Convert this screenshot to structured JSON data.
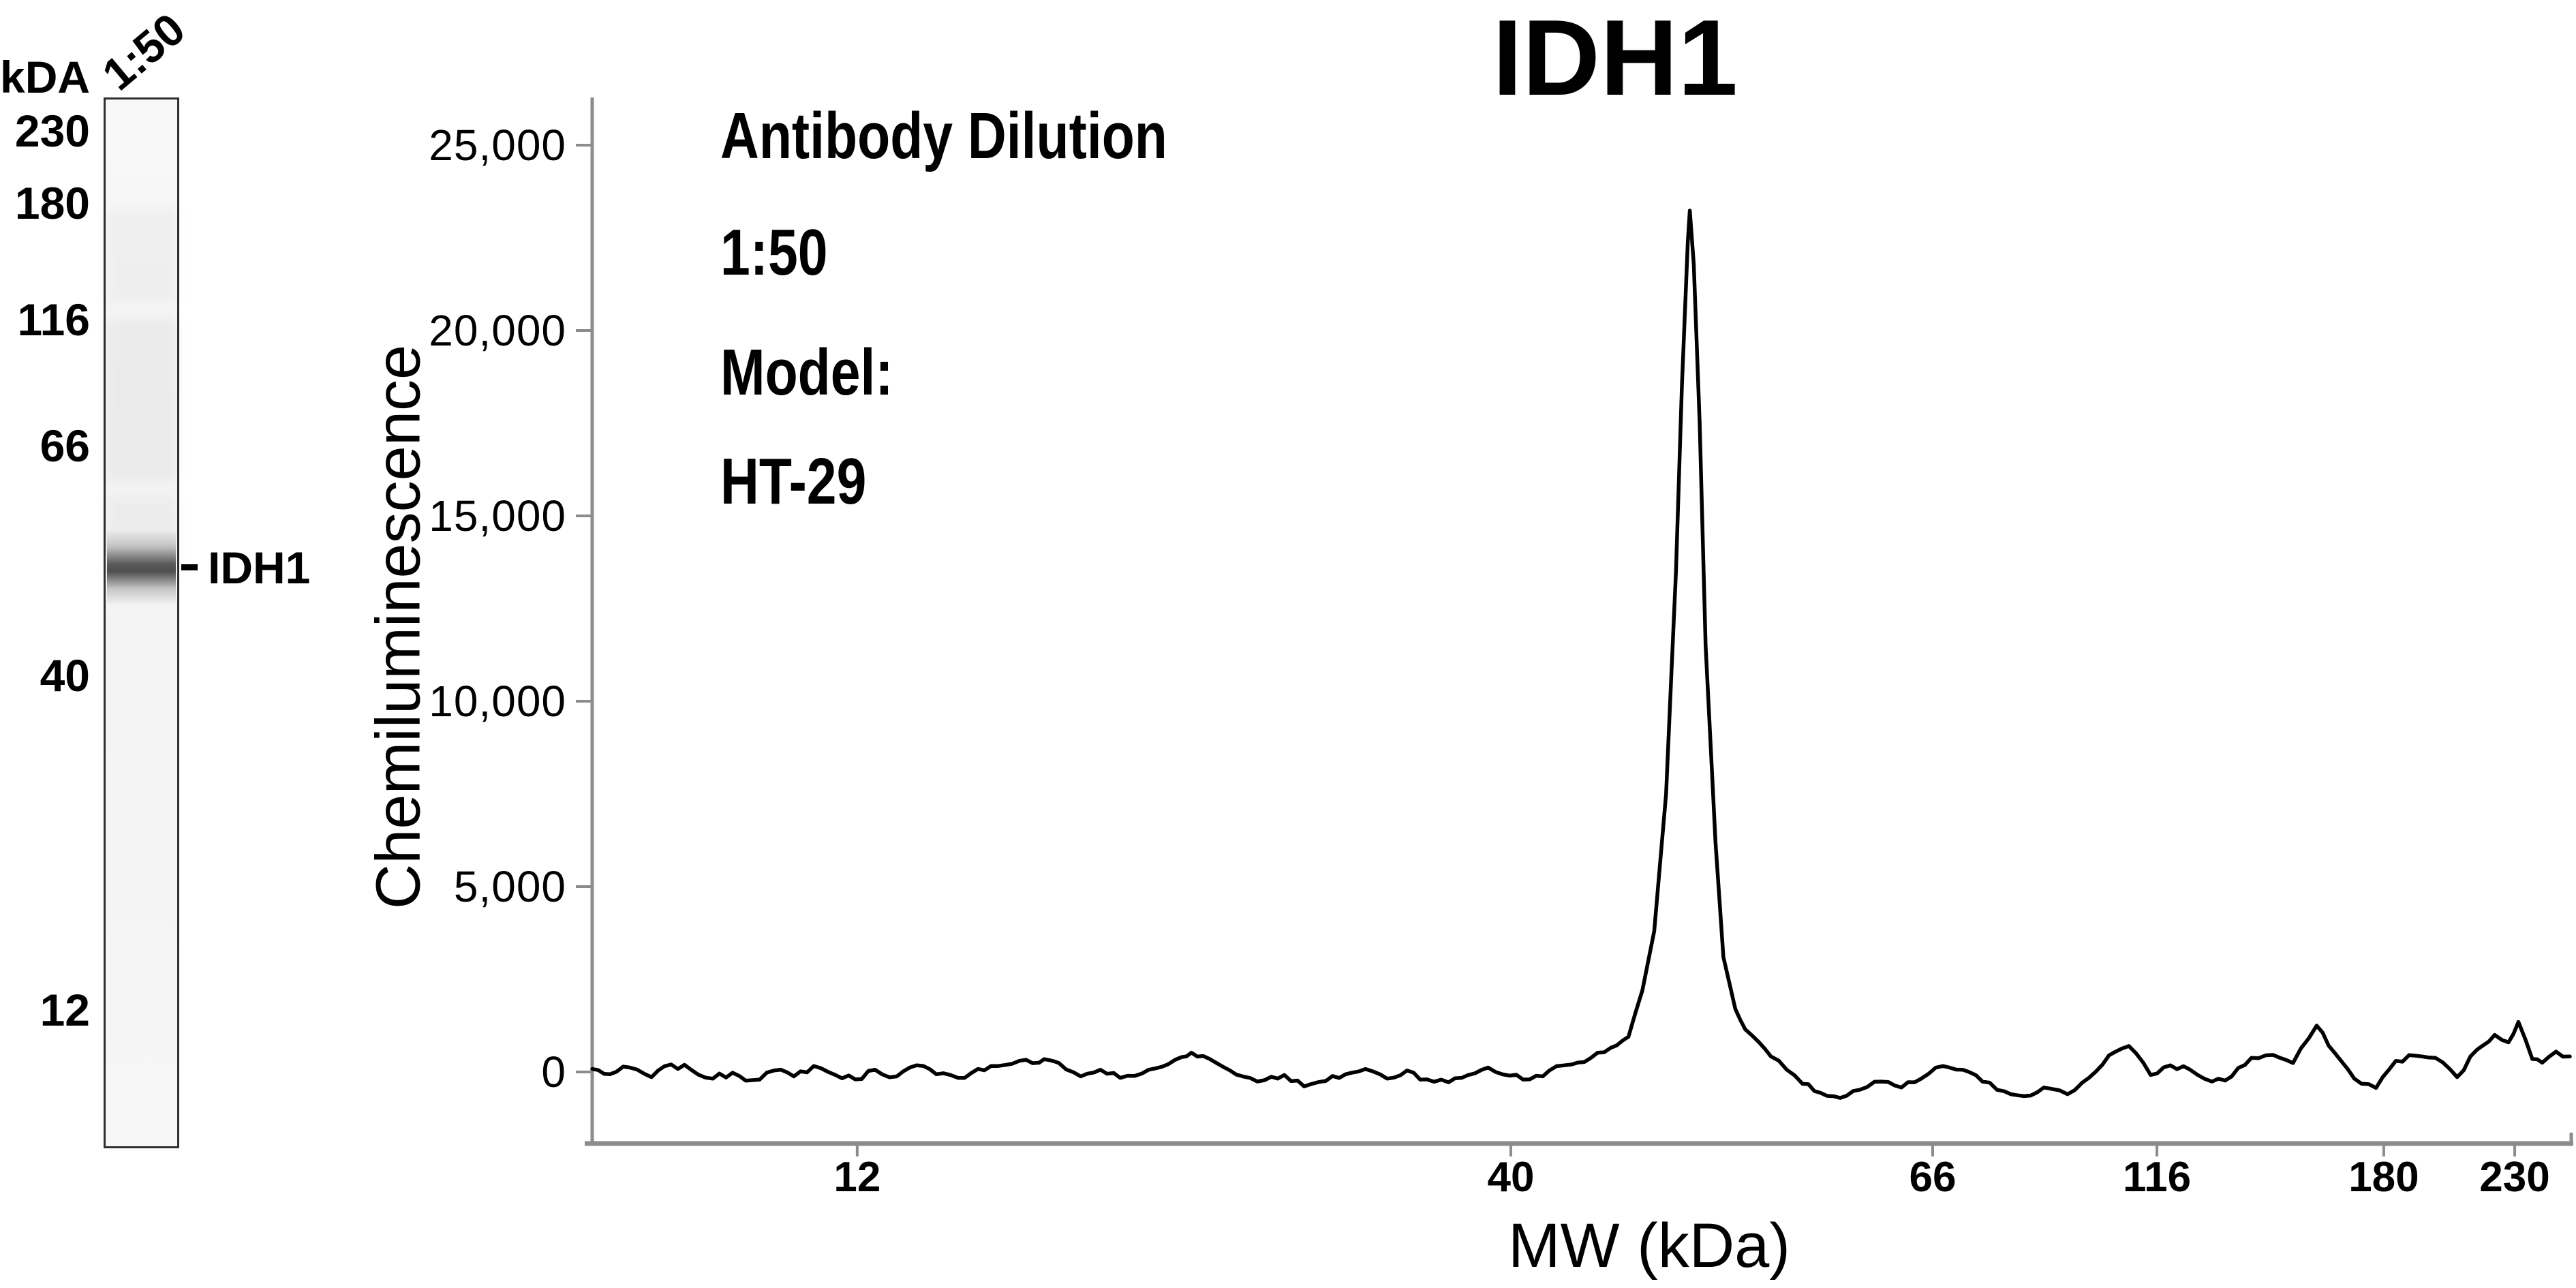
{
  "title": "IDH1",
  "colors": {
    "trace": "#000000",
    "axis": "#8c8c8c",
    "band": "#4d4d4d",
    "lane_fill": "#f4f4f4",
    "text": "#000000"
  },
  "lane": {
    "header": "kDA",
    "dilution": "1:50",
    "markers": [
      "230",
      "180",
      "116",
      "66",
      "40",
      "12"
    ],
    "band_label": "IDH1"
  },
  "annotation": {
    "dilution_title": "Antibody Dilution",
    "dilution_value": "1:50",
    "model_title": "Model:",
    "model_value": "HT-29"
  },
  "chart_data": {
    "type": "line",
    "title": "IDH1",
    "xlabel": "MW (kDa)",
    "ylabel": "Chemiluminescence",
    "legend": false,
    "gridlines": false,
    "x_axis": {
      "scale": "nonlinear molecular-weight axis",
      "tick_mws": [
        12,
        40,
        66,
        116,
        180,
        230
      ],
      "tick_labels": [
        "12",
        "40",
        "66",
        "116",
        "180",
        "230"
      ],
      "tick_positions": [
        0.134,
        0.4645,
        0.6778,
        0.7912,
        0.9059,
        0.9721
      ]
    },
    "y_axis": {
      "tick_values": [
        25000,
        20000,
        15000,
        10000,
        5000,
        0
      ],
      "tick_labels": [
        "25,000",
        "20,000",
        "15,000",
        "10,000",
        "5,000",
        "0"
      ],
      "range_units": [
        -1800,
        26300
      ]
    },
    "peak": {
      "mw_kda": 48,
      "height_units": 23235,
      "position": 0.555
    },
    "noise": {
      "seed": 7,
      "amplitude_units": 90,
      "step": 0.0042
    },
    "series": [
      [
        0.0,
        80
      ],
      [
        0.009,
        -60
      ],
      [
        0.019,
        120
      ],
      [
        0.03,
        -140
      ],
      [
        0.04,
        200
      ],
      [
        0.05,
        60
      ],
      [
        0.061,
        -180
      ],
      [
        0.071,
        -20
      ],
      [
        0.081,
        -220
      ],
      [
        0.092,
        40
      ],
      [
        0.102,
        -120
      ],
      [
        0.112,
        160
      ],
      [
        0.123,
        -80
      ],
      [
        0.133,
        -200
      ],
      [
        0.143,
        60
      ],
      [
        0.154,
        -120
      ],
      [
        0.164,
        180
      ],
      [
        0.174,
        -60
      ],
      [
        0.185,
        -160
      ],
      [
        0.195,
        80
      ],
      [
        0.205,
        160
      ],
      [
        0.216,
        300
      ],
      [
        0.226,
        250
      ],
      [
        0.231,
        320
      ],
      [
        0.236,
        240
      ],
      [
        0.247,
        -120
      ],
      [
        0.257,
        60
      ],
      [
        0.267,
        -160
      ],
      [
        0.278,
        -40
      ],
      [
        0.288,
        140
      ],
      [
        0.298,
        400
      ],
      [
        0.303,
        520
      ],
      [
        0.309,
        430
      ],
      [
        0.319,
        140
      ],
      [
        0.329,
        -120
      ],
      [
        0.34,
        -220
      ],
      [
        0.35,
        -80
      ],
      [
        0.36,
        -390
      ],
      [
        0.371,
        -240
      ],
      [
        0.381,
        -60
      ],
      [
        0.391,
        80
      ],
      [
        0.402,
        -180
      ],
      [
        0.412,
        40
      ],
      [
        0.422,
        -200
      ],
      [
        0.433,
        -280
      ],
      [
        0.443,
        -80
      ],
      [
        0.453,
        120
      ],
      [
        0.464,
        -100
      ],
      [
        0.474,
        -200
      ],
      [
        0.484,
        40
      ],
      [
        0.495,
        200
      ],
      [
        0.505,
        380
      ],
      [
        0.515,
        650
      ],
      [
        0.524,
        950
      ],
      [
        0.531,
        2200
      ],
      [
        0.537,
        3800
      ],
      [
        0.543,
        7500
      ],
      [
        0.548,
        13500
      ],
      [
        0.551,
        18500
      ],
      [
        0.554,
        22400
      ],
      [
        0.555,
        23235
      ],
      [
        0.557,
        21800
      ],
      [
        0.56,
        17500
      ],
      [
        0.563,
        11500
      ],
      [
        0.568,
        6200
      ],
      [
        0.572,
        3100
      ],
      [
        0.578,
        1700
      ],
      [
        0.583,
        1150
      ],
      [
        0.59,
        800
      ],
      [
        0.596,
        420
      ],
      [
        0.604,
        60
      ],
      [
        0.612,
        -320
      ],
      [
        0.621,
        -560
      ],
      [
        0.631,
        -700
      ],
      [
        0.641,
        -480
      ],
      [
        0.652,
        -260
      ],
      [
        0.662,
        -420
      ],
      [
        0.672,
        -180
      ],
      [
        0.683,
        160
      ],
      [
        0.693,
        60
      ],
      [
        0.703,
        -260
      ],
      [
        0.714,
        -520
      ],
      [
        0.724,
        -650
      ],
      [
        0.734,
        -420
      ],
      [
        0.746,
        -600
      ],
      [
        0.757,
        -150
      ],
      [
        0.767,
        450
      ],
      [
        0.777,
        700
      ],
      [
        0.788,
        -80
      ],
      [
        0.798,
        180
      ],
      [
        0.808,
        60
      ],
      [
        0.819,
        -260
      ],
      [
        0.829,
        -120
      ],
      [
        0.839,
        380
      ],
      [
        0.85,
        460
      ],
      [
        0.86,
        240
      ],
      [
        0.872,
        1250
      ],
      [
        0.881,
        520
      ],
      [
        0.891,
        -180
      ],
      [
        0.902,
        -430
      ],
      [
        0.912,
        300
      ],
      [
        0.922,
        440
      ],
      [
        0.932,
        380
      ],
      [
        0.943,
        -140
      ],
      [
        0.953,
        600
      ],
      [
        0.962,
        1000
      ],
      [
        0.969,
        800
      ],
      [
        0.974,
        1350
      ],
      [
        0.981,
        350
      ],
      [
        0.986,
        250
      ],
      [
        0.993,
        550
      ],
      [
        1.0,
        420
      ]
    ]
  }
}
